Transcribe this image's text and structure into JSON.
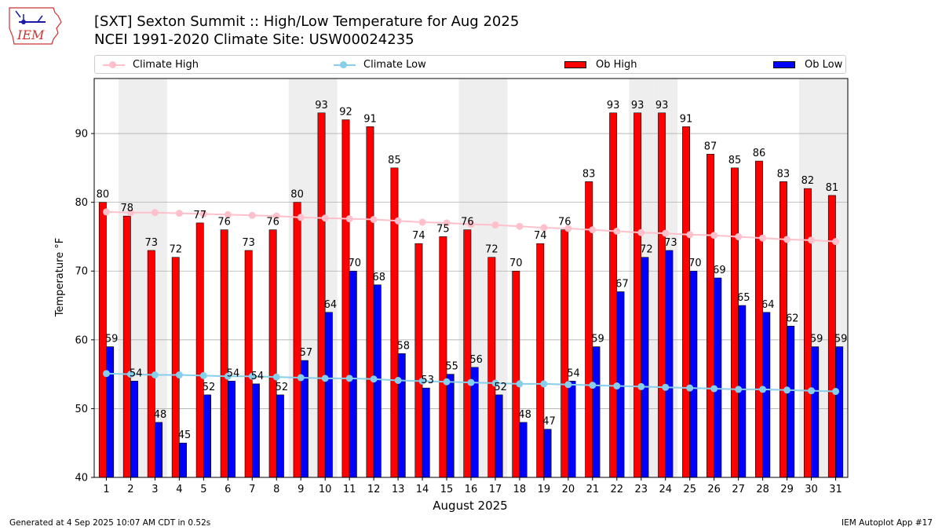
{
  "title_line1": "[SXT] Sexton Summit :: High/Low Temperature for Aug 2025",
  "title_line2": "NCEI 1991-2020 Climate Site: USW00024235",
  "logo_text": "IEM",
  "footer_left": "Generated at 4 Sep 2025 10:07 AM CDT in 0.52s",
  "footer_right": "IEM Autoplot App #17",
  "legend": {
    "climate_high": "Climate High",
    "climate_low": "Climate Low",
    "ob_high": "Ob High",
    "ob_low": "Ob Low"
  },
  "colors": {
    "ob_high": "#ff0000",
    "ob_low": "#0000ff",
    "climate_high": "#ffc0cb",
    "climate_low": "#87ceeb",
    "weekend_band": "#eeeeee"
  },
  "chart_data": {
    "type": "bar",
    "xlabel": "August 2025",
    "ylabel": "Temperature °F",
    "ylim": [
      40,
      98
    ],
    "yticks": [
      40,
      50,
      60,
      70,
      80,
      90
    ],
    "grid": "horizontal",
    "legend_position": "top",
    "weekend_days": [
      2,
      3,
      9,
      10,
      16,
      17,
      23,
      24,
      30,
      31
    ],
    "categories": [
      "1",
      "2",
      "3",
      "4",
      "5",
      "6",
      "7",
      "8",
      "9",
      "10",
      "11",
      "12",
      "13",
      "14",
      "15",
      "16",
      "17",
      "18",
      "19",
      "20",
      "21",
      "22",
      "23",
      "24",
      "25",
      "26",
      "27",
      "28",
      "29",
      "30",
      "31"
    ],
    "series": [
      {
        "name": "Ob High",
        "type": "bar",
        "values": [
          80,
          78,
          73,
          72,
          77,
          76,
          73,
          76,
          80,
          93,
          92,
          91,
          85,
          74,
          75,
          76,
          72,
          70,
          74,
          76,
          83,
          93,
          93,
          93,
          91,
          87,
          85,
          86,
          83,
          82,
          81
        ]
      },
      {
        "name": "Ob Low",
        "type": "bar",
        "values": [
          59,
          54,
          48,
          45,
          52,
          54,
          53.6,
          52,
          57,
          64,
          70,
          68,
          58,
          53,
          55,
          56,
          52,
          48,
          47,
          54,
          59,
          67,
          72,
          73,
          70,
          69,
          65,
          64,
          62,
          59,
          59
        ]
      },
      {
        "name": "Climate High",
        "type": "line",
        "values": [
          78.6,
          78.5,
          78.5,
          78.4,
          78.3,
          78.2,
          78.1,
          78.0,
          77.8,
          77.7,
          77.6,
          77.5,
          77.3,
          77.1,
          77.0,
          76.8,
          76.7,
          76.5,
          76.3,
          76.2,
          76.0,
          75.8,
          75.6,
          75.5,
          75.3,
          75.2,
          75.0,
          74.8,
          74.6,
          74.5,
          74.3
        ]
      },
      {
        "name": "Climate Low",
        "type": "line",
        "values": [
          55.1,
          55.0,
          54.9,
          54.9,
          54.8,
          54.7,
          54.7,
          54.6,
          54.5,
          54.4,
          54.4,
          54.3,
          54.1,
          54.0,
          53.9,
          53.8,
          53.7,
          53.6,
          53.6,
          53.5,
          53.4,
          53.3,
          53.2,
          53.1,
          53.0,
          52.9,
          52.8,
          52.8,
          52.7,
          52.6,
          52.5
        ]
      }
    ],
    "data_labels": {
      "ob_high": [
        "80",
        "78",
        "73",
        "72",
        "77",
        "76",
        "73",
        "76",
        "80",
        "93",
        "92",
        "91",
        "85",
        "74",
        "75",
        "76",
        "72",
        "70",
        "74",
        "76",
        "83",
        "93",
        "93",
        "93",
        "91",
        "87",
        "85",
        "86",
        "83",
        "82",
        "81"
      ],
      "ob_low": [
        "59",
        "54",
        "48",
        "45",
        "52",
        "54",
        "54",
        "52",
        "57",
        "64",
        "70",
        "68",
        "58",
        "53",
        "55",
        "56",
        "52",
        "48",
        "47",
        "54",
        "59",
        "67",
        "72",
        "73",
        "70",
        "69",
        "65",
        "64",
        "62",
        "59",
        "59"
      ]
    }
  }
}
